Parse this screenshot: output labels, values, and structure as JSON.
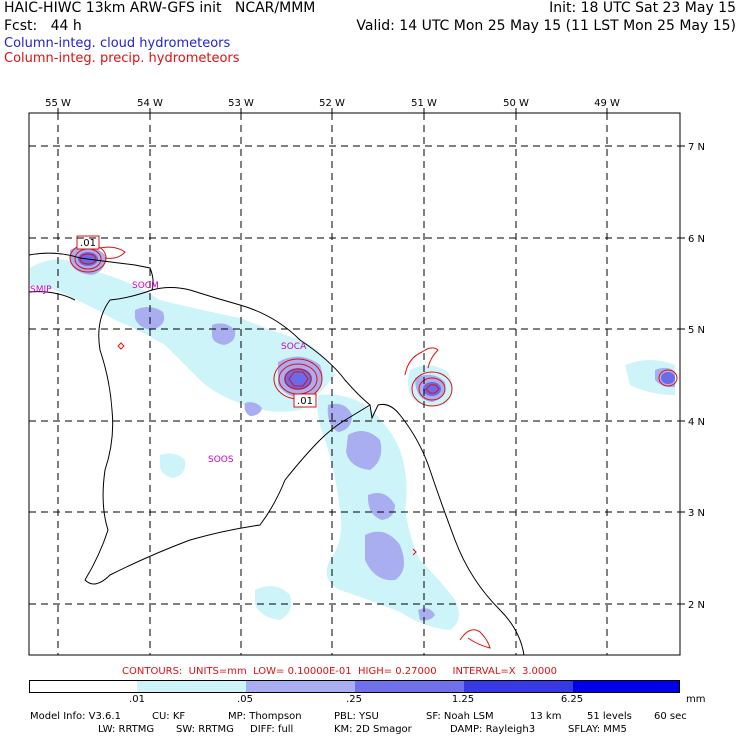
{
  "header": {
    "title": "HAIC-HIWC 13km ARW-GFS init   NCAR/MMM",
    "init": "Init: 18 UTC Sat 23 May 15",
    "fcst": "Fcst:   44 h",
    "valid": "Valid: 14 UTC Mon 25 May 15 (11 LST Mon 25 May 15)",
    "cloud_label": "Column-integ. cloud hydrometeors",
    "precip_label": "Column-integ. precip. hydrometeors",
    "cloud_color": "#2222cc",
    "precip_color": "#dd1111"
  },
  "map": {
    "lon_labels": [
      "55 W",
      "54 W",
      "53 W",
      "52 W",
      "51 W",
      "50 W",
      "49 W"
    ],
    "lat_labels": [
      "7 N",
      "6 N",
      "5 N",
      "4 N",
      "3 N",
      "2 N"
    ],
    "stations": [
      "SMJP",
      "SOCM",
      "SOCA",
      "SOOS"
    ],
    "contour_labels": [
      ".01",
      ".01"
    ],
    "fill_colors": [
      "#cdf4f8",
      "#a9aef0",
      "#7070ea",
      "#3030e0"
    ]
  },
  "contour_info": "CONTOURS:  UNITS=mm  LOW= 0.10000E-01  HIGH= 0.27000     INTERVAL=X  3.0000",
  "colorbar": {
    "unit": "mm",
    "labels": [
      ".01",
      ".05",
      ".25",
      "1.25",
      "6.25"
    ],
    "colors": [
      "#ffffff",
      "#cdf4f8",
      "#a9aef0",
      "#7070ea",
      "#3838e4",
      "#0000e8"
    ]
  },
  "model_info": {
    "line1": [
      "Model Info: V3.6.1",
      "CU: KF",
      "MP: Thompson",
      "PBL: YSU",
      "SF: Noah LSM",
      "13 km",
      "51 levels",
      "60 sec"
    ],
    "line2": [
      "LW: RRTMG",
      "SW: RRTMG",
      "DIFF: full",
      "KM: 2D Smagor",
      "DAMP: Rayleigh3",
      "SFLAY: MM5"
    ]
  }
}
